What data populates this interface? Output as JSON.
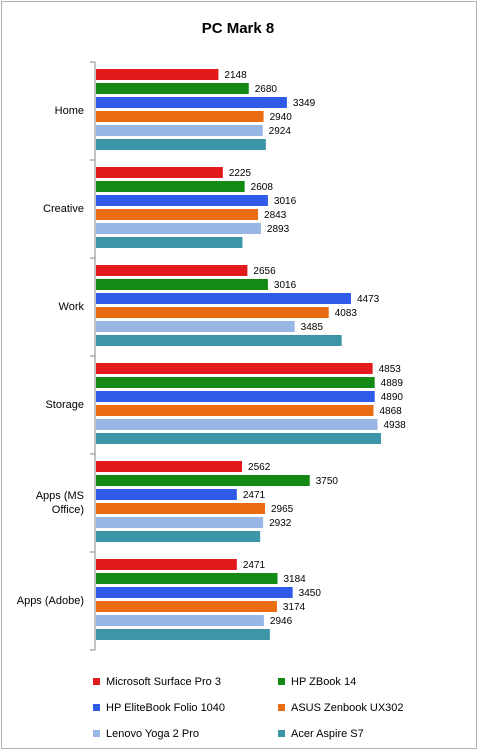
{
  "chart_data": {
    "type": "bar",
    "orientation": "horizontal",
    "title": "PC Mark 8",
    "xlabel": "",
    "ylabel": "",
    "xlim": [
      0,
      5200
    ],
    "categories": [
      "Home",
      "Creative",
      "Work",
      "Storage",
      "Apps (MS Office)",
      "Apps (Adobe)"
    ],
    "category_lines": [
      [
        "Home"
      ],
      [
        "Creative"
      ],
      [
        "Work"
      ],
      [
        "Storage"
      ],
      [
        "Apps (MS",
        "Office)"
      ],
      [
        "Apps (Adobe)"
      ]
    ],
    "series": [
      {
        "name": "Microsoft Surface Pro 3",
        "color": "#e31a1c",
        "values": [
          2148,
          2225,
          2656,
          4853,
          2562,
          2471
        ],
        "labels": [
          "2148",
          "2225",
          "2656",
          "4853",
          "2562",
          "2471"
        ]
      },
      {
        "name": "HP ZBook 14",
        "color": "#138a13",
        "values": [
          2680,
          2608,
          3016,
          4889,
          3750,
          3184
        ],
        "labels": [
          "2680",
          "2608",
          "3016",
          "4889",
          "3750",
          "3184"
        ]
      },
      {
        "name": "HP EliteBook Folio 1040",
        "color": "#2f5be8",
        "values": [
          3349,
          3016,
          4473,
          4890,
          2471,
          3450
        ],
        "labels": [
          "3349",
          "3016",
          "4473",
          "4890",
          "2471",
          "3450"
        ]
      },
      {
        "name": "ASUS Zenbook UX302",
        "color": "#ea6c12",
        "values": [
          2940,
          2843,
          4083,
          4868,
          2965,
          3174
        ],
        "labels": [
          "2940",
          "2843",
          "4083",
          "4868",
          "2965",
          "3174"
        ]
      },
      {
        "name": "Lenovo Yoga 2 Pro",
        "color": "#97b6e4",
        "values": [
          2924,
          2893,
          3485,
          4938,
          2932,
          2946
        ],
        "labels": [
          "2924",
          "2893",
          "3485",
          "4938",
          "2932",
          "2946"
        ]
      },
      {
        "name": "Acer Aspire S7",
        "color": "#3d96a7",
        "values": [
          2980,
          2570,
          4310,
          5000,
          2880,
          3050
        ],
        "labels": [
          "",
          "",
          "",
          "",
          "",
          ""
        ]
      }
    ],
    "legend_position": "bottom",
    "grid": false
  }
}
